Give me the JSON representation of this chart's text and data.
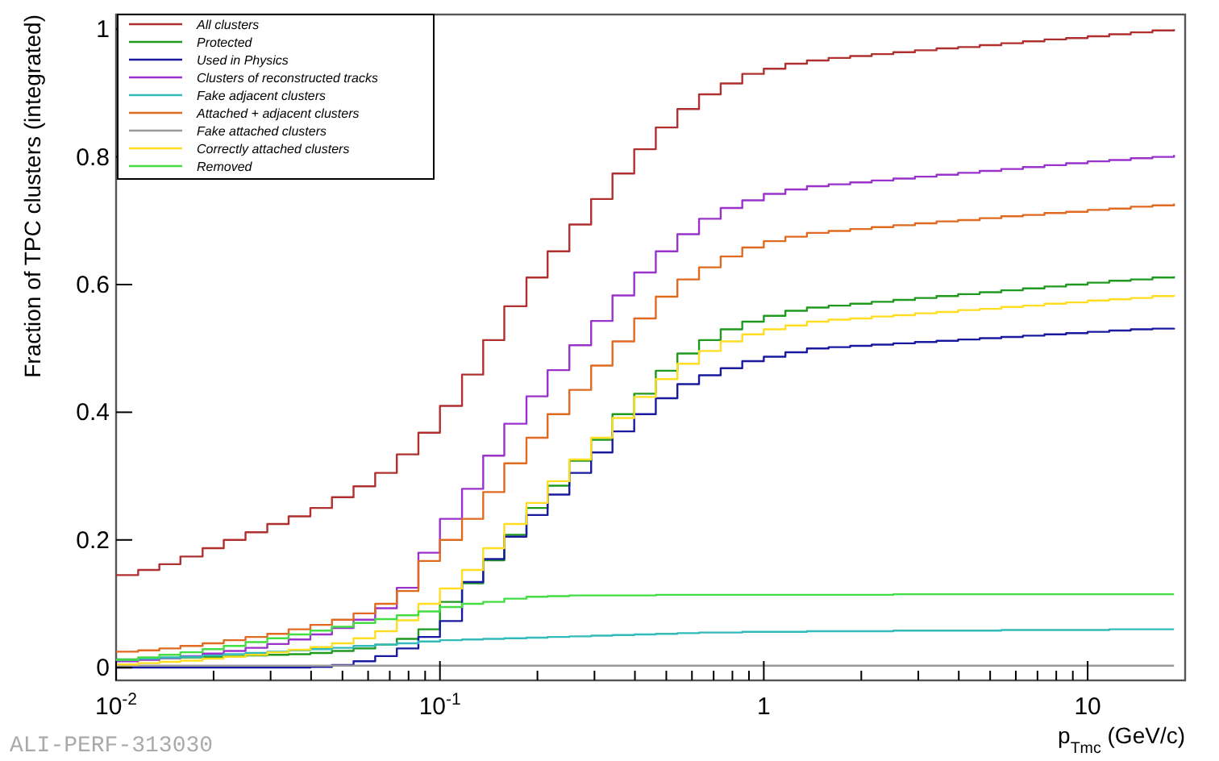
{
  "chart_data": {
    "type": "step",
    "ylabel": "Fraction of TPC clusters (integrated)",
    "xlabel": "p$_{Tmc}$ (GeV/c)",
    "log": "x",
    "legend": "top left",
    "annotations": [
      "ALI-PERF-313030"
    ],
    "xlim": [
      0.01,
      20
    ],
    "ylim": [
      -0.02,
      1.023
    ],
    "xticks": [
      {
        "value": 0.01,
        "label": "10$^{-2}$"
      },
      {
        "value": 0.02,
        "label": null
      },
      {
        "value": 0.03,
        "label": null
      },
      {
        "value": 0.04,
        "label": null
      },
      {
        "value": 0.05,
        "label": null
      },
      {
        "value": 0.06,
        "label": null
      },
      {
        "value": 0.07,
        "label": null
      },
      {
        "value": 0.08,
        "label": null
      },
      {
        "value": 0.09,
        "label": null
      },
      {
        "value": 0.1,
        "label": "10$^{-1}$"
      },
      {
        "value": 0.2,
        "label": null
      },
      {
        "value": 0.3,
        "label": null
      },
      {
        "value": 0.4,
        "label": null
      },
      {
        "value": 0.5,
        "label": null
      },
      {
        "value": 0.6,
        "label": null
      },
      {
        "value": 0.7,
        "label": null
      },
      {
        "value": 0.8,
        "label": null
      },
      {
        "value": 0.9,
        "label": null
      },
      1,
      {
        "value": 2,
        "label": null
      },
      {
        "value": 3,
        "label": null
      },
      {
        "value": 4,
        "label": null
      },
      {
        "value": 5,
        "label": null
      },
      {
        "value": 6,
        "label": null
      },
      {
        "value": 7,
        "label": null
      },
      {
        "value": 8,
        "label": null
      },
      {
        "value": 9,
        "label": null
      },
      10
    ],
    "yticks": [
      0,
      0.2,
      0.4,
      0.6,
      0.8,
      1
    ],
    "x": [
      0.01,
      0.0117,
      0.0136,
      0.0158,
      0.0185,
      0.0215,
      0.0251,
      0.0293,
      0.0341,
      0.0398,
      0.0464,
      0.0541,
      0.0631,
      0.0736,
      0.0858,
      0.1,
      0.117,
      0.136,
      0.158,
      0.185,
      0.215,
      0.251,
      0.293,
      0.341,
      0.398,
      0.464,
      0.541,
      0.631,
      0.736,
      0.858,
      1,
      1.166,
      1.359,
      1.585,
      1.848,
      2.154,
      2.512,
      2.929,
      3.415,
      3.981,
      4.642,
      5.412,
      6.31,
      7.356,
      8.577,
      10,
      11.66,
      13.59,
      15.85,
      18.48
    ],
    "series": [
      {
        "name": "All clusters",
        "color": "#b03030",
        "values": [
          0.145,
          0.153,
          0.162,
          0.174,
          0.187,
          0.2,
          0.212,
          0.225,
          0.237,
          0.25,
          0.267,
          0.284,
          0.305,
          0.334,
          0.368,
          0.41,
          0.459,
          0.513,
          0.566,
          0.611,
          0.652,
          0.694,
          0.734,
          0.774,
          0.812,
          0.846,
          0.875,
          0.898,
          0.915,
          0.93,
          0.938,
          0.946,
          0.951,
          0.955,
          0.958,
          0.961,
          0.964,
          0.967,
          0.97,
          0.972,
          0.975,
          0.978,
          0.981,
          0.984,
          0.986,
          0.989,
          0.992,
          0.995,
          0.998,
          1.0
        ]
      },
      {
        "name": "Protected",
        "color": "#1f9a1f",
        "values": [
          0.013,
          0.014,
          0.015,
          0.016,
          0.017,
          0.018,
          0.019,
          0.02,
          0.021,
          0.023,
          0.026,
          0.03,
          0.036,
          0.045,
          0.06,
          0.103,
          0.132,
          0.168,
          0.208,
          0.25,
          0.285,
          0.324,
          0.357,
          0.397,
          0.429,
          0.465,
          0.492,
          0.513,
          0.53,
          0.542,
          0.551,
          0.559,
          0.564,
          0.567,
          0.57,
          0.573,
          0.576,
          0.579,
          0.582,
          0.585,
          0.588,
          0.591,
          0.594,
          0.597,
          0.6,
          0.603,
          0.606,
          0.608,
          0.611,
          0.613
        ]
      },
      {
        "name": "Used in Physics",
        "color": "#1a1aa0",
        "values": [
          0,
          0,
          0,
          0,
          0,
          0,
          0,
          0,
          0,
          0.001,
          0.004,
          0.01,
          0.018,
          0.03,
          0.048,
          0.073,
          0.134,
          0.17,
          0.205,
          0.239,
          0.271,
          0.305,
          0.337,
          0.37,
          0.397,
          0.422,
          0.444,
          0.458,
          0.469,
          0.48,
          0.487,
          0.494,
          0.5,
          0.502,
          0.504,
          0.506,
          0.508,
          0.51,
          0.512,
          0.514,
          0.516,
          0.518,
          0.52,
          0.522,
          0.524,
          0.526,
          0.528,
          0.53,
          0.531,
          0.532
        ]
      },
      {
        "name": "Clusters of reconstructed tracks",
        "color": "#9933cc",
        "values": [
          0.01,
          0.012,
          0.015,
          0.018,
          0.022,
          0.026,
          0.031,
          0.037,
          0.044,
          0.052,
          0.062,
          0.075,
          0.093,
          0.125,
          0.18,
          0.233,
          0.28,
          0.332,
          0.382,
          0.425,
          0.466,
          0.505,
          0.543,
          0.583,
          0.619,
          0.652,
          0.679,
          0.703,
          0.72,
          0.732,
          0.742,
          0.749,
          0.754,
          0.757,
          0.76,
          0.763,
          0.766,
          0.769,
          0.772,
          0.775,
          0.778,
          0.781,
          0.784,
          0.787,
          0.79,
          0.793,
          0.795,
          0.798,
          0.8,
          0.803
        ]
      },
      {
        "name": "Fake adjacent clusters",
        "color": "#33bbbb",
        "values": [
          0.012,
          0.014,
          0.016,
          0.017,
          0.019,
          0.021,
          0.023,
          0.025,
          0.027,
          0.029,
          0.031,
          0.034,
          0.036,
          0.038,
          0.041,
          0.043,
          0.044,
          0.045,
          0.046,
          0.047,
          0.048,
          0.049,
          0.05,
          0.051,
          0.052,
          0.053,
          0.054,
          0.055,
          0.055,
          0.056,
          0.056,
          0.056,
          0.057,
          0.057,
          0.057,
          0.057,
          0.058,
          0.058,
          0.058,
          0.058,
          0.058,
          0.059,
          0.059,
          0.059,
          0.059,
          0.059,
          0.06,
          0.06,
          0.06,
          0.06
        ]
      },
      {
        "name": "Attached + adjacent clusters",
        "color": "#e06a20",
        "values": [
          0.025,
          0.027,
          0.03,
          0.034,
          0.038,
          0.043,
          0.048,
          0.053,
          0.06,
          0.067,
          0.075,
          0.085,
          0.1,
          0.12,
          0.167,
          0.2,
          0.233,
          0.275,
          0.32,
          0.36,
          0.397,
          0.435,
          0.473,
          0.511,
          0.547,
          0.581,
          0.608,
          0.627,
          0.644,
          0.658,
          0.668,
          0.675,
          0.681,
          0.684,
          0.687,
          0.69,
          0.693,
          0.696,
          0.699,
          0.701,
          0.704,
          0.707,
          0.709,
          0.712,
          0.714,
          0.717,
          0.719,
          0.722,
          0.724,
          0.727
        ]
      },
      {
        "name": "Fake attached clusters",
        "color": "#999999",
        "values": [
          0.003,
          0.003,
          0.003,
          0.003,
          0.003,
          0.003,
          0.003,
          0.003,
          0.003,
          0.003,
          0.003,
          0.003,
          0.003,
          0.003,
          0.003,
          0.003,
          0.003,
          0.003,
          0.003,
          0.003,
          0.003,
          0.003,
          0.003,
          0.003,
          0.003,
          0.003,
          0.003,
          0.003,
          0.003,
          0.003,
          0.003,
          0.003,
          0.003,
          0.003,
          0.003,
          0.003,
          0.003,
          0.003,
          0.003,
          0.003,
          0.003,
          0.003,
          0.003,
          0.003,
          0.003,
          0.003,
          0.003,
          0.003,
          0.003,
          0.003
        ]
      },
      {
        "name": "Correctly attached clusters",
        "color": "#ffdd22",
        "values": [
          0.005,
          0.007,
          0.009,
          0.011,
          0.014,
          0.017,
          0.02,
          0.024,
          0.028,
          0.032,
          0.038,
          0.046,
          0.057,
          0.074,
          0.1,
          0.124,
          0.153,
          0.187,
          0.225,
          0.258,
          0.292,
          0.326,
          0.36,
          0.391,
          0.424,
          0.452,
          0.476,
          0.496,
          0.511,
          0.522,
          0.53,
          0.536,
          0.542,
          0.545,
          0.547,
          0.55,
          0.552,
          0.555,
          0.557,
          0.56,
          0.562,
          0.565,
          0.567,
          0.57,
          0.572,
          0.575,
          0.577,
          0.579,
          0.582,
          0.584
        ]
      },
      {
        "name": "Removed",
        "color": "#44dd44",
        "values": [
          0.012,
          0.016,
          0.02,
          0.024,
          0.029,
          0.034,
          0.04,
          0.046,
          0.052,
          0.058,
          0.064,
          0.07,
          0.076,
          0.082,
          0.088,
          0.095,
          0.1,
          0.103,
          0.108,
          0.111,
          0.112,
          0.113,
          0.113,
          0.113,
          0.113,
          0.114,
          0.114,
          0.114,
          0.114,
          0.114,
          0.114,
          0.114,
          0.114,
          0.114,
          0.114,
          0.114,
          0.115,
          0.115,
          0.115,
          0.115,
          0.115,
          0.115,
          0.115,
          0.115,
          0.115,
          0.115,
          0.115,
          0.115,
          0.115,
          0.115
        ]
      }
    ]
  }
}
